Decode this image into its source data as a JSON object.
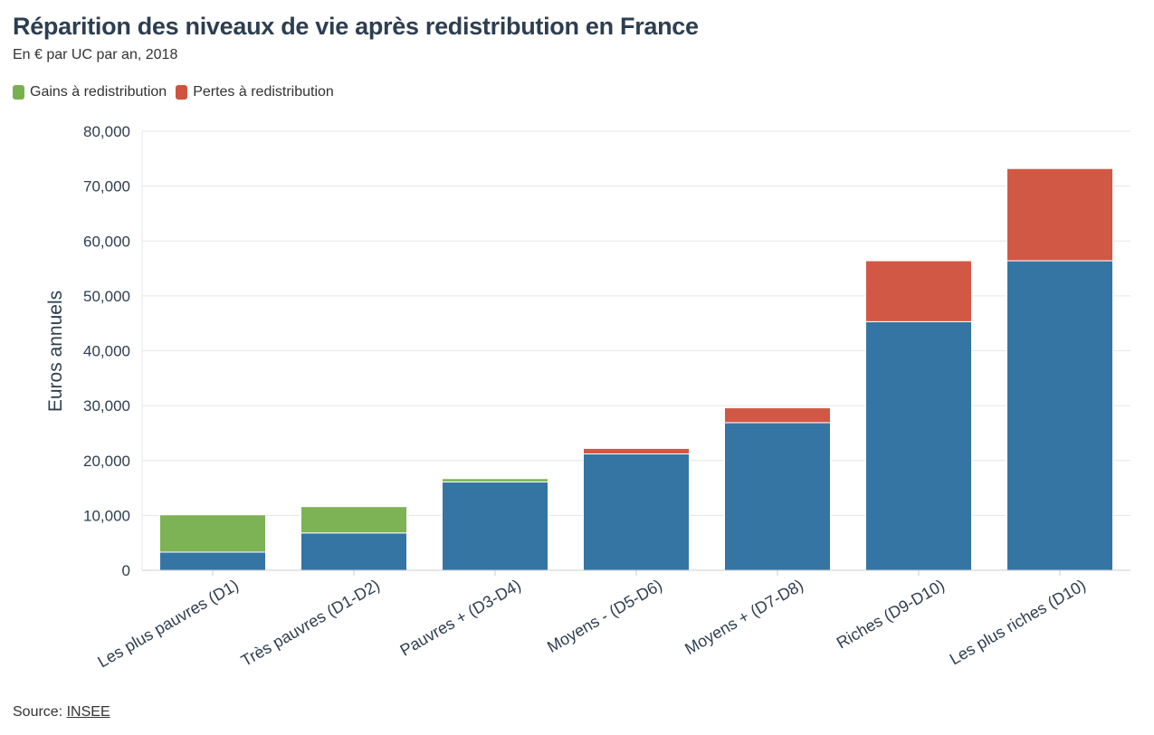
{
  "chart_data": {
    "type": "bar",
    "stacked": true,
    "title": "Réparition des niveaux de vie après redistribution en France",
    "subtitle": "En € par UC par an, 2018",
    "ylabel": "Euros annuels",
    "ylim": [
      0,
      80000
    ],
    "yticks": [
      0,
      10000,
      20000,
      30000,
      40000,
      50000,
      60000,
      70000,
      80000
    ],
    "ytick_labels": [
      "0",
      "10,000",
      "20,000",
      "30,000",
      "40,000",
      "50,000",
      "60,000",
      "70,000",
      "80,000"
    ],
    "grid": true,
    "legend_position": "top-left",
    "categories": [
      "Les plus pauvres (D1)",
      "Très pauvres (D1-D2)",
      "Pauvres + (D3-D4)",
      "Moyens - (D5-D6)",
      "Moyens + (D7-D8)",
      "Riches (D9-D10)",
      "Les plus riches (D10)"
    ],
    "series": [
      {
        "key": "base",
        "color": "#2e71a0",
        "values": [
          3300,
          6800,
          16100,
          21200,
          26900,
          45300,
          56400
        ]
      },
      {
        "name": "Gains à redistribution",
        "color": "#79b04f",
        "values": [
          6800,
          4800,
          600,
          0,
          0,
          0,
          0
        ]
      },
      {
        "name": "Pertes à redistribution",
        "color": "#d0533f",
        "values": [
          0,
          0,
          0,
          1000,
          2700,
          11100,
          16800
        ]
      }
    ]
  },
  "source": {
    "label": "Source:",
    "link_text": "INSEE"
  }
}
